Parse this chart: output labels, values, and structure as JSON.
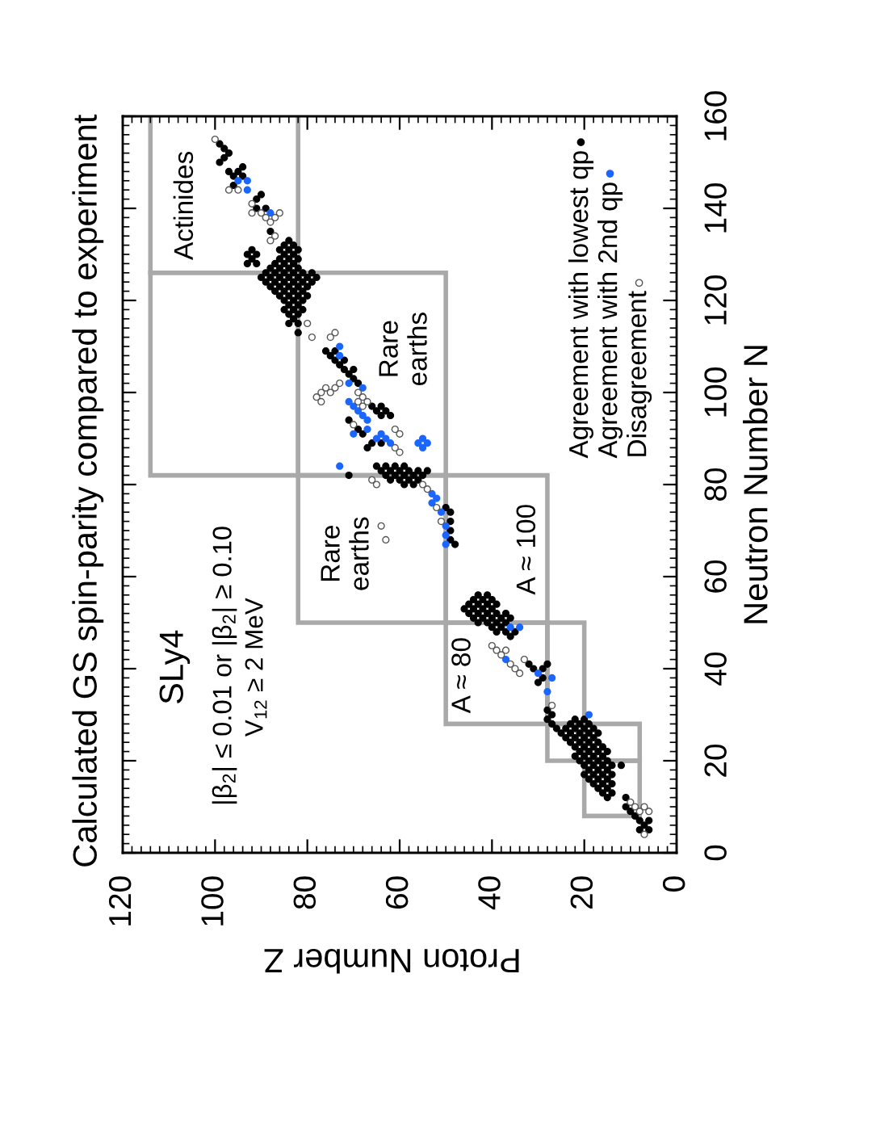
{
  "chart_data": {
    "type": "scatter",
    "title": "Calculated GS spin-parity compared to experiment",
    "xlabel": "Proton Number Z",
    "ylabel": "Neutron Number N",
    "xlim": [
      120,
      0
    ],
    "xticks": [
      120,
      100,
      80,
      60,
      40,
      20,
      0
    ],
    "ylim": [
      0,
      160
    ],
    "yticks": [
      0,
      20,
      40,
      60,
      80,
      100,
      120,
      140,
      160
    ],
    "legend": "right",
    "annotations": [
      "SLy4",
      "|β$_{2}$| ≤ 0.01 or |β$_{2}$| ≥ 0.10",
      "V$_{12}$ ≥ 2 MeV",
      "Actinides",
      "Rare\nearths",
      "Rare\nearths",
      "A ≈ 100",
      "A ≈ 80"
    ],
    "series": [
      {
        "name": "Agreement with lowest qp",
        "marker": "circle",
        "color": "#000000",
        "x": [
          99,
          98,
          97,
          98,
          99,
          97,
          96,
          95,
          94,
          94,
          96,
          91,
          90,
          91,
          89,
          88,
          93,
          92,
          91,
          93,
          92,
          91,
          84,
          85,
          83,
          86,
          84,
          82,
          85,
          83,
          86,
          84,
          82,
          87,
          85,
          83,
          88,
          86,
          84,
          82,
          89,
          87,
          85,
          83,
          81,
          79,
          90,
          88,
          86,
          84,
          82,
          80,
          78,
          89,
          87,
          85,
          83,
          81,
          79,
          88,
          86,
          84,
          82,
          80,
          87,
          85,
          83,
          81,
          86,
          84,
          82,
          80,
          85,
          83,
          81,
          84,
          82,
          85,
          83,
          81,
          84,
          82,
          83,
          84,
          82,
          82,
          76,
          75,
          74,
          74,
          73,
          72,
          72,
          71,
          70,
          70,
          69,
          66,
          65,
          64,
          63,
          62,
          64,
          71,
          69,
          68,
          66,
          67,
          64,
          65,
          63,
          61,
          59,
          64,
          62,
          60,
          58,
          56,
          54,
          63,
          61,
          59,
          57,
          55,
          62,
          60,
          58,
          56,
          59,
          57,
          71,
          50,
          49,
          49,
          49,
          49,
          48,
          43,
          41,
          44,
          42,
          40,
          45,
          43,
          41,
          39,
          46,
          44,
          42,
          40,
          45,
          43,
          41,
          39,
          37,
          44,
          42,
          40,
          38,
          36,
          43,
          41,
          39,
          37,
          40,
          38,
          39,
          37,
          35,
          36,
          32,
          31,
          30,
          29,
          29,
          28,
          28,
          27,
          28,
          27,
          26,
          25,
          22,
          20,
          23,
          21,
          19,
          24,
          22,
          20,
          18,
          23,
          21,
          19,
          17,
          24,
          22,
          20,
          18,
          23,
          21,
          19,
          17,
          22,
          20,
          18,
          16,
          21,
          19,
          17,
          15,
          22,
          20,
          18,
          16,
          21,
          19,
          17,
          15,
          20,
          18,
          16,
          14,
          19,
          17,
          15,
          20,
          18,
          16,
          14,
          19,
          17,
          15,
          18,
          16,
          14,
          17,
          15,
          16,
          14,
          15,
          12,
          11,
          11,
          10,
          9,
          8,
          7,
          8,
          6,
          6
        ],
        "values": [
          154,
          153,
          152,
          151,
          150,
          148,
          147,
          148,
          149,
          147,
          145,
          142,
          143,
          140,
          140,
          135,
          130,
          131,
          130,
          128,
          129,
          128,
          133,
          132,
          132,
          131,
          131,
          131,
          130,
          130,
          129,
          129,
          129,
          128,
          128,
          128,
          127,
          127,
          127,
          127,
          126,
          126,
          126,
          126,
          126,
          126,
          125,
          125,
          125,
          125,
          125,
          125,
          125,
          124,
          124,
          124,
          124,
          124,
          124,
          123,
          123,
          123,
          123,
          123,
          122,
          122,
          122,
          122,
          121,
          121,
          121,
          121,
          120,
          120,
          120,
          119,
          119,
          118,
          118,
          118,
          117,
          117,
          116,
          115,
          115,
          113,
          109,
          108,
          109,
          107,
          106,
          107,
          105,
          104,
          105,
          103,
          102,
          97,
          96,
          97,
          96,
          95,
          95,
          94,
          92,
          91,
          89,
          88,
          89,
          84,
          84,
          84,
          84,
          83,
          83,
          83,
          83,
          83,
          83,
          82,
          82,
          82,
          82,
          82,
          81,
          81,
          81,
          81,
          80,
          80,
          82,
          75,
          74,
          72,
          70,
          68,
          67,
          56,
          56,
          55,
          55,
          55,
          54,
          54,
          54,
          54,
          53,
          53,
          53,
          53,
          52,
          52,
          52,
          52,
          52,
          51,
          51,
          51,
          51,
          51,
          50,
          50,
          50,
          50,
          49,
          49,
          48,
          48,
          48,
          47,
          41,
          40,
          37,
          40,
          38,
          41,
          31,
          30,
          29,
          28,
          27,
          26,
          29,
          29,
          28,
          28,
          28,
          27,
          27,
          27,
          27,
          26,
          26,
          26,
          26,
          25,
          25,
          25,
          25,
          24,
          24,
          24,
          24,
          23,
          23,
          23,
          23,
          22,
          22,
          22,
          22,
          21,
          21,
          21,
          21,
          20,
          20,
          20,
          20,
          19,
          19,
          19,
          19,
          18,
          18,
          18,
          17,
          17,
          17,
          17,
          16,
          16,
          16,
          15,
          15,
          15,
          14,
          14,
          13,
          13,
          12,
          19,
          12,
          10,
          9,
          8,
          7,
          6,
          5,
          7,
          5
        ]
      },
      {
        "name": "Agreement with 2nd qp",
        "marker": "circle",
        "color": "#1a66ff",
        "x": [
          95,
          93,
          93,
          88,
          73,
          73,
          71,
          68,
          71,
          70,
          69,
          68,
          67,
          70,
          67,
          65,
          64,
          63,
          62,
          55,
          54,
          56,
          55,
          73,
          53,
          52,
          53,
          51,
          50,
          50,
          50,
          36,
          34,
          37,
          30,
          27,
          28,
          19
        ],
        "values": [
          146,
          146,
          144,
          139,
          110,
          108,
          102,
          101,
          98,
          97,
          96,
          95,
          94,
          91,
          92,
          90,
          91,
          90,
          89,
          90,
          89,
          89,
          88,
          84,
          78,
          77,
          76,
          74,
          71,
          69,
          67,
          49,
          49,
          42,
          39,
          38,
          35,
          30
        ]
      },
      {
        "name": "Disagreement",
        "marker": "circle",
        "color": "#ffffff",
        "x": [
          100,
          97,
          95,
          92,
          92,
          90,
          89,
          87,
          86,
          88,
          87,
          88,
          80,
          79,
          74,
          75,
          69,
          68,
          69,
          68,
          67,
          70,
          61,
          60,
          61,
          60,
          78,
          77,
          77,
          76,
          75,
          74,
          73,
          66,
          65,
          55,
          54,
          52,
          51,
          64,
          63,
          40,
          39,
          38,
          37,
          36,
          35,
          34,
          33,
          27,
          10,
          9,
          8,
          7,
          6,
          7
        ],
        "values": [
          155,
          144,
          144,
          141,
          139,
          139,
          138,
          138,
          139,
          137,
          134,
          133,
          115,
          112,
          113,
          112,
          100,
          99,
          98,
          97,
          98,
          93,
          92,
          91,
          88,
          87,
          99,
          98,
          100,
          101,
          100,
          101,
          102,
          81,
          80,
          80,
          79,
          75,
          72,
          71,
          68,
          45,
          44,
          43,
          44,
          41,
          40,
          39,
          42,
          32,
          11,
          10,
          9,
          10,
          9,
          4
        ]
      }
    ]
  }
}
